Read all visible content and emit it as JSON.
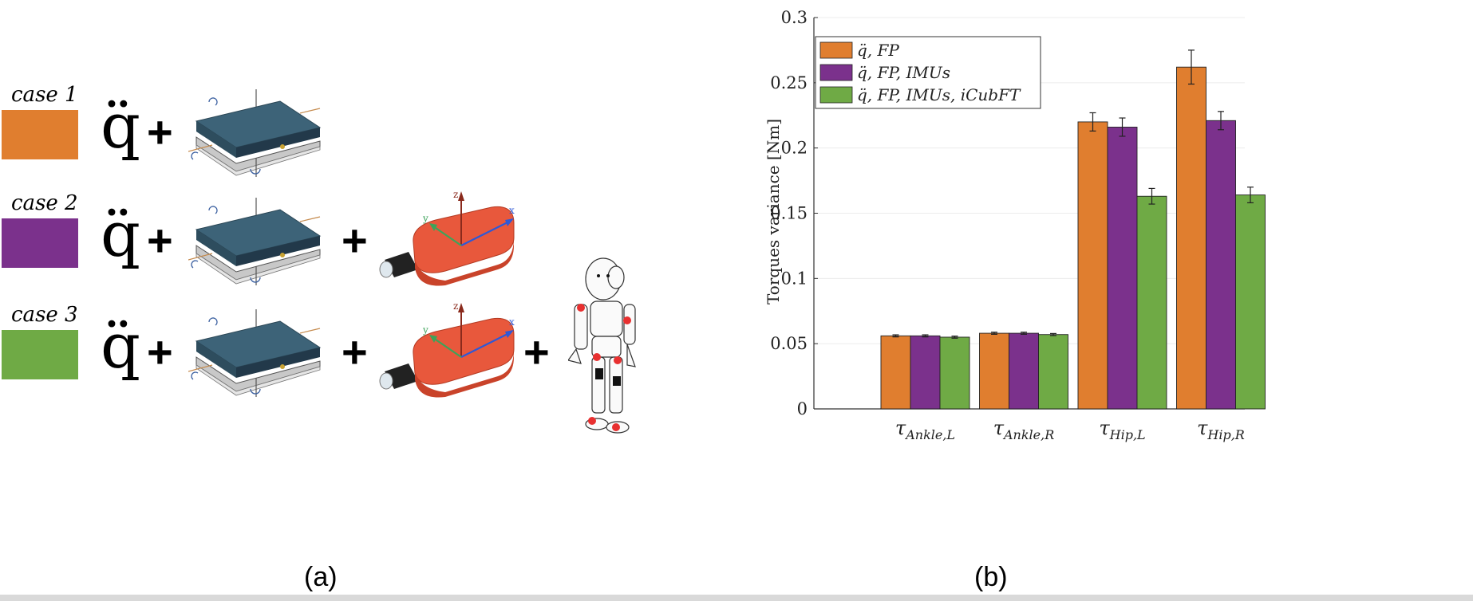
{
  "panel_a": {
    "cases": [
      {
        "label": "case 1",
        "color": "#E07E2F",
        "formula": "q̈",
        "items": [
          "force-plate"
        ]
      },
      {
        "label": "case 2",
        "color": "#7B318C",
        "formula": "q̈",
        "items": [
          "force-plate",
          "imu"
        ]
      },
      {
        "label": "case 3",
        "color": "#6FAA45",
        "formula": "q̈",
        "items": [
          "force-plate",
          "imu",
          "icub-robot"
        ]
      }
    ],
    "plus": "+",
    "imu_axes": {
      "x": "x",
      "y": "y",
      "z": "z"
    },
    "caption": "(a)"
  },
  "panel_b": {
    "caption": "(b)"
  },
  "chart_data": {
    "type": "bar",
    "ylabel": "Torques variance [Nm]",
    "xlabel": "",
    "ylim": [
      0,
      0.3
    ],
    "yticks": [
      "0",
      "0.05",
      "0.1",
      "0.15",
      "0.2",
      "0.25",
      "0.3"
    ],
    "categories": [
      {
        "base": "τ",
        "sub": "Ankle,L"
      },
      {
        "base": "τ",
        "sub": "Ankle,R"
      },
      {
        "base": "τ",
        "sub": "Hip,L"
      },
      {
        "base": "τ",
        "sub": "Hip,R"
      }
    ],
    "series": [
      {
        "name": "q̈, FP",
        "color": "#E07E2F",
        "values": [
          0.056,
          0.058,
          0.22,
          0.262
        ],
        "errors": [
          0.0008,
          0.0008,
          0.007,
          0.013
        ]
      },
      {
        "name": "q̈, FP, IMUs",
        "color": "#7B318C",
        "values": [
          0.056,
          0.058,
          0.216,
          0.221
        ],
        "errors": [
          0.0008,
          0.0008,
          0.007,
          0.007
        ]
      },
      {
        "name": "q̈, FP, IMUs, iCubFT",
        "color": "#6FAA45",
        "values": [
          0.055,
          0.057,
          0.163,
          0.164
        ],
        "errors": [
          0.0008,
          0.0008,
          0.006,
          0.006
        ]
      }
    ],
    "legend_position": "top-left",
    "grid": "horizontal"
  }
}
